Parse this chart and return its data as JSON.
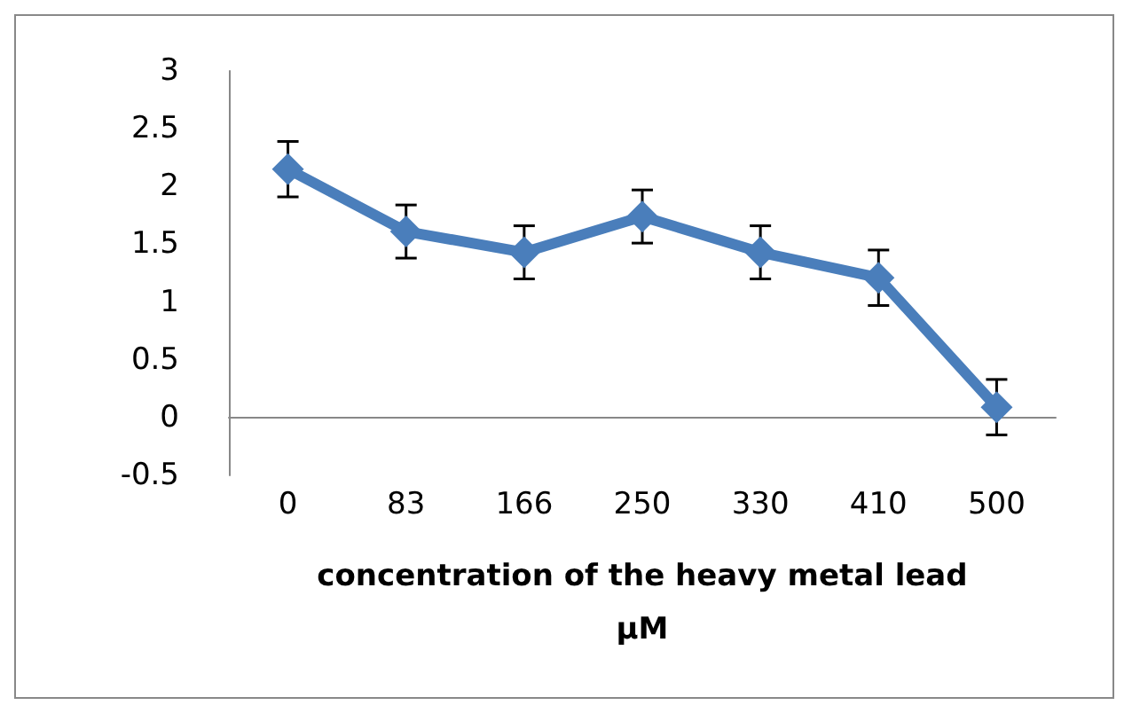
{
  "chart_data": {
    "type": "line",
    "categories": [
      "0",
      "83",
      "166",
      "250",
      "330",
      "410",
      "500"
    ],
    "xlabel": "concentration of the heavy metal lead\nµM",
    "series": [
      {
        "color": "#4a7ebb",
        "values": [
          2.15,
          1.61,
          1.43,
          1.74,
          1.43,
          1.21,
          0.09
        ],
        "errors": [
          0.24,
          0.23,
          0.23,
          0.23,
          0.23,
          0.24,
          0.24
        ]
      }
    ],
    "ylim": [
      -0.5,
      3
    ],
    "yticks": [
      -0.5,
      0,
      0.5,
      1,
      1.5,
      2,
      2.5,
      3
    ],
    "grid": false,
    "marker": "diamond",
    "line_style": "solid"
  }
}
